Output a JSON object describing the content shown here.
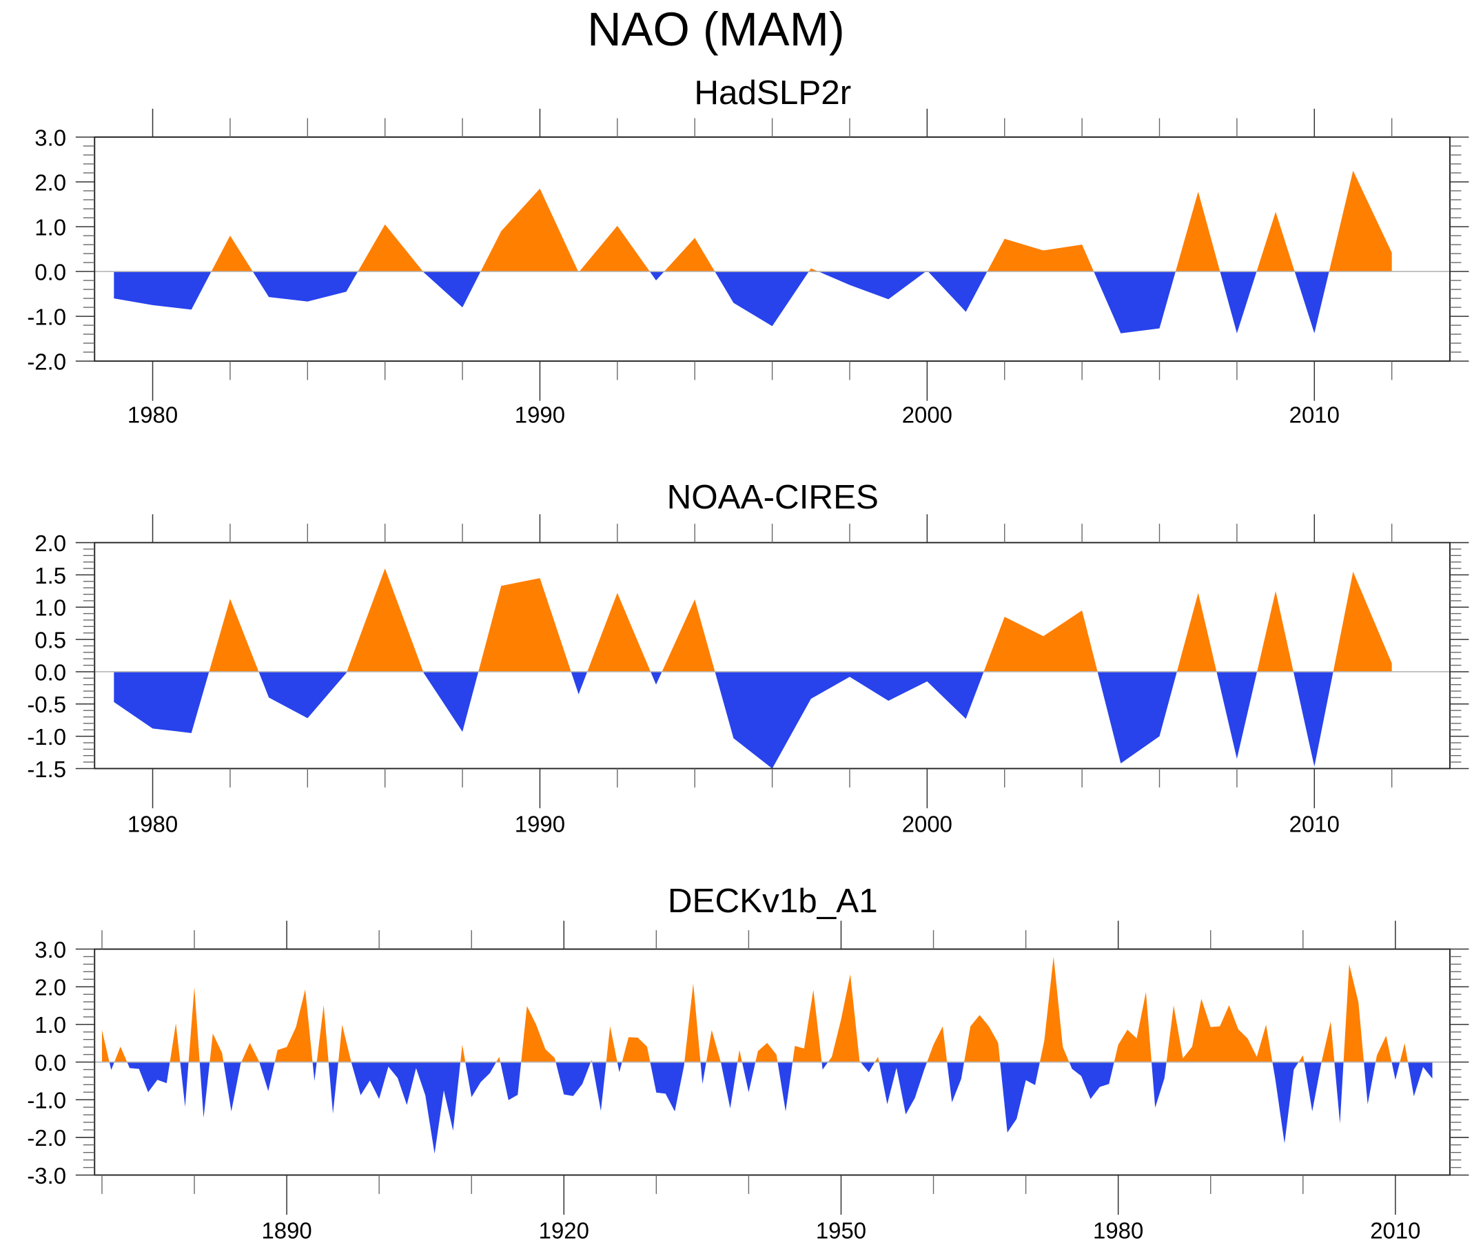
{
  "figure": {
    "title": "NAO (MAM)"
  },
  "colors": {
    "positive": "#ff7f00",
    "negative": "#2843eb",
    "zero_line": "#b5b5b5",
    "frame": "#222222"
  },
  "chart_data": [
    {
      "type": "area",
      "title": "HadSLP2r",
      "xlabel": "",
      "ylabel": "",
      "xlim": [
        1978.5,
        2013.5
      ],
      "ylim": [
        -2.0,
        3.0
      ],
      "xticks": [
        1980,
        1990,
        2000,
        2010
      ],
      "xtick_labels": [
        "1980",
        "1990",
        "2000",
        "2010"
      ],
      "xminor_step": 2,
      "yticks": [
        3.0,
        2.0,
        1.0,
        0.0,
        -1.0,
        -2.0
      ],
      "ytick_labels": [
        "3.0",
        "2.0",
        "1.0",
        "0.0",
        "-1.0",
        "-2.0"
      ],
      "yminor_step": 0.2,
      "grid": false,
      "fill_above_zero": "positive",
      "fill_below_zero": "negative",
      "x": [
        1979,
        1980,
        1981,
        1982,
        1983,
        1984,
        1985,
        1986,
        1987,
        1988,
        1989,
        1990,
        1991,
        1992,
        1993,
        1994,
        1995,
        1996,
        1997,
        1998,
        1999,
        2000,
        2001,
        2002,
        2003,
        2004,
        2005,
        2006,
        2007,
        2008,
        2009,
        2010,
        2011,
        2012
      ],
      "values": [
        -0.6,
        -0.75,
        -0.85,
        0.8,
        -0.57,
        -0.67,
        -0.45,
        1.05,
        -0.02,
        -0.8,
        0.9,
        1.85,
        -0.02,
        1.02,
        -0.2,
        0.75,
        -0.7,
        -1.22,
        0.07,
        -0.3,
        -0.62,
        0.02,
        -0.9,
        0.73,
        0.47,
        0.6,
        -1.38,
        -1.27,
        1.78,
        -1.38,
        1.33,
        -1.38,
        2.25,
        0.42
      ]
    },
    {
      "type": "area",
      "title": "NOAA-CIRES",
      "xlabel": "",
      "ylabel": "",
      "xlim": [
        1978.5,
        2013.5
      ],
      "ylim": [
        -1.5,
        2.0
      ],
      "xticks": [
        1980,
        1990,
        2000,
        2010
      ],
      "xtick_labels": [
        "1980",
        "1990",
        "2000",
        "2010"
      ],
      "xminor_step": 2,
      "yticks": [
        2.0,
        1.5,
        1.0,
        0.5,
        0.0,
        -0.5,
        -1.0,
        -1.5
      ],
      "ytick_labels": [
        "2.0",
        "1.5",
        "1.0",
        "0.5",
        "0.0",
        "-0.5",
        "-1.0",
        "-1.5"
      ],
      "yminor_step": 0.1,
      "grid": false,
      "fill_above_zero": "positive",
      "fill_below_zero": "negative",
      "x": [
        1979,
        1980,
        1981,
        1982,
        1983,
        1984,
        1985,
        1986,
        1987,
        1988,
        1989,
        1990,
        1991,
        1992,
        1993,
        1994,
        1995,
        1996,
        1997,
        1998,
        1999,
        2000,
        2001,
        2002,
        2003,
        2004,
        2005,
        2006,
        2007,
        2008,
        2009,
        2010,
        2011,
        2012
      ],
      "values": [
        -0.47,
        -0.88,
        -0.95,
        1.13,
        -0.4,
        -0.72,
        -0.02,
        1.6,
        -0.02,
        -0.93,
        1.33,
        1.45,
        -0.35,
        1.22,
        -0.2,
        1.12,
        -1.03,
        -1.5,
        -0.42,
        -0.08,
        -0.45,
        -0.15,
        -0.73,
        0.85,
        0.55,
        0.95,
        -1.42,
        -1.0,
        1.22,
        -1.35,
        1.25,
        -1.47,
        1.55,
        0.13
      ]
    },
    {
      "type": "area",
      "title": "DECKv1b_A1",
      "xlabel": "",
      "ylabel": "",
      "xlim": [
        1869.2,
        2015.9
      ],
      "ylim": [
        -3.0,
        3.0
      ],
      "xticks": [
        1890,
        1920,
        1950,
        1980,
        2010
      ],
      "xtick_labels": [
        "1890",
        "1920",
        "1950",
        "1980",
        "2010"
      ],
      "xminor_step": 10,
      "yticks": [
        3.0,
        2.0,
        1.0,
        0.0,
        -1.0,
        -2.0,
        -3.0
      ],
      "ytick_labels": [
        "3.0",
        "2.0",
        "1.0",
        "0.0",
        "-1.0",
        "-2.0",
        "-3.0"
      ],
      "yminor_step": 0.2,
      "grid": false,
      "fill_above_zero": "positive",
      "fill_below_zero": "negative",
      "x_start": 1870,
      "x_end": 2014,
      "values": [
        0.85,
        -0.21,
        0.41,
        -0.16,
        -0.18,
        -0.8,
        -0.47,
        -0.56,
        1.03,
        -1.19,
        1.99,
        -1.48,
        0.76,
        0.24,
        -1.31,
        -0.05,
        0.51,
        0.02,
        -0.77,
        0.32,
        0.4,
        0.93,
        1.93,
        -0.5,
        1.51,
        -1.37,
        0.99,
        -0.02,
        -0.88,
        -0.49,
        -0.98,
        -0.12,
        -0.42,
        -1.14,
        -0.16,
        -0.88,
        -2.43,
        -0.75,
        -1.82,
        0.46,
        -0.93,
        -0.53,
        -0.29,
        0.14,
        -1.01,
        -0.87,
        1.49,
        0.99,
        0.34,
        0.11,
        -0.86,
        -0.9,
        -0.58,
        0.06,
        -1.3,
        0.95,
        -0.27,
        0.66,
        0.65,
        0.41,
        -0.81,
        -0.84,
        -1.31,
        -0.1,
        2.09,
        -0.58,
        0.85,
        -0.02,
        -1.23,
        0.32,
        -0.8,
        0.29,
        0.51,
        0.2,
        -1.31,
        0.43,
        0.36,
        1.92,
        -0.2,
        0.14,
        1.13,
        2.33,
        0.03,
        -0.27,
        0.14,
        -1.12,
        -0.15,
        -1.39,
        -0.95,
        -0.2,
        0.46,
        0.95,
        -1.07,
        -0.45,
        0.95,
        1.25,
        0.95,
        0.51,
        -1.87,
        -1.51,
        -0.48,
        -0.61,
        0.57,
        2.8,
        0.4,
        -0.18,
        -0.37,
        -0.98,
        -0.66,
        -0.58,
        0.46,
        0.86,
        0.63,
        1.86,
        -1.21,
        -0.43,
        1.5,
        0.1,
        0.41,
        1.68,
        0.93,
        0.95,
        1.51,
        0.87,
        0.63,
        0.14,
        0.99,
        -0.45,
        -2.16,
        -0.2,
        0.18,
        -1.31,
        0.0,
        1.08,
        -1.63,
        2.6,
        1.59,
        -1.12,
        0.18,
        0.7,
        -0.47,
        0.5,
        -0.91,
        -0.13,
        -0.44
      ]
    }
  ]
}
